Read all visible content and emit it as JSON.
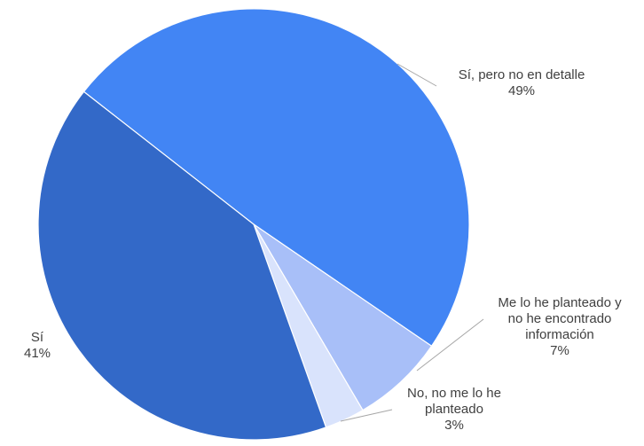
{
  "chart_data": {
    "type": "pie",
    "title": "",
    "slices": [
      {
        "name": "Sí, pero no en detalle",
        "value": 49,
        "value_label": "49%",
        "color": "#4285f4"
      },
      {
        "name": "Me lo he planteado y no he encontrado información",
        "value": 7,
        "value_label": "7%",
        "color": "#a8bff8"
      },
      {
        "name": "No, no me lo he planteado",
        "value": 3,
        "value_label": "3%",
        "color": "#d9e3fc"
      },
      {
        "name": "Sí",
        "value": 41,
        "value_label": "41%",
        "color": "#3369c8"
      }
    ],
    "label_lines": [
      [
        "Sí, pero no en detalle",
        "49%"
      ],
      [
        "Me lo he planteado y",
        "no he encontrado",
        "información",
        "7%"
      ],
      [
        "No, no me lo he",
        "planteado",
        "3%"
      ],
      [
        "Sí",
        "41%"
      ]
    ],
    "legend": "none",
    "slice_border_color": "#ffffff",
    "leader_line_color": "#a6a6a6",
    "label_color": "#404040"
  }
}
